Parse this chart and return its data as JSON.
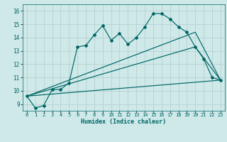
{
  "background_color": "#cfe9e9",
  "grid_color": "#b0cccc",
  "line_color": "#006666",
  "xlabel": "Humidex (Indice chaleur)",
  "xlim": [
    -0.5,
    23.5
  ],
  "ylim": [
    8.5,
    16.5
  ],
  "yticks": [
    9,
    10,
    11,
    12,
    13,
    14,
    15,
    16
  ],
  "xticks": [
    0,
    1,
    2,
    3,
    4,
    5,
    6,
    7,
    8,
    9,
    10,
    11,
    12,
    13,
    14,
    15,
    16,
    17,
    18,
    19,
    20,
    21,
    22,
    23
  ],
  "line1_x": [
    0,
    1,
    2,
    3,
    4,
    5,
    6,
    7,
    8,
    9,
    10,
    11,
    12,
    13,
    14,
    15,
    16,
    17,
    18,
    19,
    20,
    21,
    22,
    23
  ],
  "line1_y": [
    9.6,
    8.7,
    8.9,
    10.1,
    10.1,
    10.6,
    13.3,
    13.4,
    14.2,
    14.9,
    13.8,
    14.3,
    13.5,
    14.0,
    14.8,
    15.8,
    15.8,
    15.4,
    14.8,
    14.4,
    13.3,
    12.4,
    11.0,
    10.8
  ],
  "line2_x": [
    0,
    23
  ],
  "line2_y": [
    9.6,
    10.8
  ],
  "line3_x": [
    0,
    20,
    23
  ],
  "line3_y": [
    9.6,
    13.3,
    10.8
  ],
  "line4_x": [
    0,
    20,
    23
  ],
  "line4_y": [
    9.6,
    14.4,
    10.8
  ]
}
